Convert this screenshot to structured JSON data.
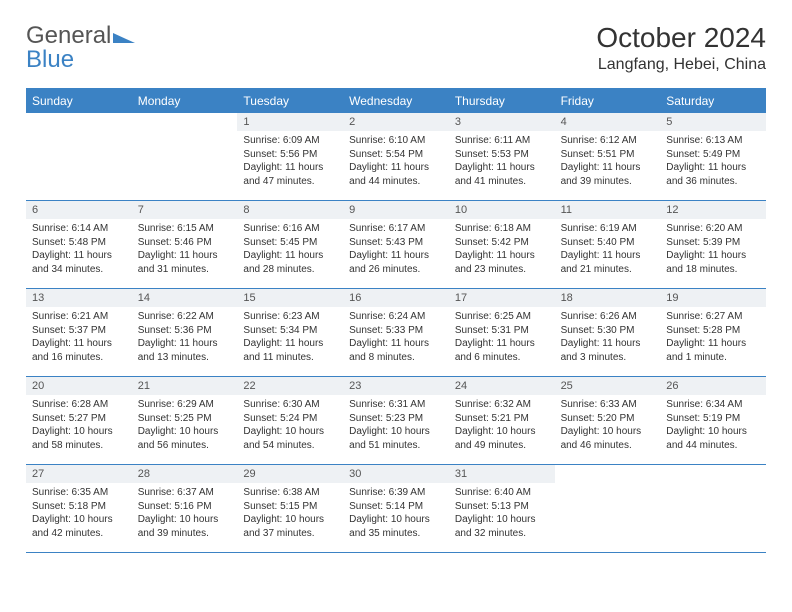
{
  "logo": {
    "part1": "General",
    "part2": "Blue"
  },
  "title": "October 2024",
  "location": "Langfang, Hebei, China",
  "colors": {
    "header_bg": "#3b82c4",
    "header_text": "#ffffff",
    "date_bar_bg": "#eef1f4",
    "border": "#3b82c4",
    "body_text": "#333333",
    "page_bg": "#ffffff"
  },
  "day_headers": [
    "Sunday",
    "Monday",
    "Tuesday",
    "Wednesday",
    "Thursday",
    "Friday",
    "Saturday"
  ],
  "weeks": [
    [
      {
        "date": "",
        "sunrise": "",
        "sunset": "",
        "daylight": ""
      },
      {
        "date": "",
        "sunrise": "",
        "sunset": "",
        "daylight": ""
      },
      {
        "date": "1",
        "sunrise": "Sunrise: 6:09 AM",
        "sunset": "Sunset: 5:56 PM",
        "daylight": "Daylight: 11 hours and 47 minutes."
      },
      {
        "date": "2",
        "sunrise": "Sunrise: 6:10 AM",
        "sunset": "Sunset: 5:54 PM",
        "daylight": "Daylight: 11 hours and 44 minutes."
      },
      {
        "date": "3",
        "sunrise": "Sunrise: 6:11 AM",
        "sunset": "Sunset: 5:53 PM",
        "daylight": "Daylight: 11 hours and 41 minutes."
      },
      {
        "date": "4",
        "sunrise": "Sunrise: 6:12 AM",
        "sunset": "Sunset: 5:51 PM",
        "daylight": "Daylight: 11 hours and 39 minutes."
      },
      {
        "date": "5",
        "sunrise": "Sunrise: 6:13 AM",
        "sunset": "Sunset: 5:49 PM",
        "daylight": "Daylight: 11 hours and 36 minutes."
      }
    ],
    [
      {
        "date": "6",
        "sunrise": "Sunrise: 6:14 AM",
        "sunset": "Sunset: 5:48 PM",
        "daylight": "Daylight: 11 hours and 34 minutes."
      },
      {
        "date": "7",
        "sunrise": "Sunrise: 6:15 AM",
        "sunset": "Sunset: 5:46 PM",
        "daylight": "Daylight: 11 hours and 31 minutes."
      },
      {
        "date": "8",
        "sunrise": "Sunrise: 6:16 AM",
        "sunset": "Sunset: 5:45 PM",
        "daylight": "Daylight: 11 hours and 28 minutes."
      },
      {
        "date": "9",
        "sunrise": "Sunrise: 6:17 AM",
        "sunset": "Sunset: 5:43 PM",
        "daylight": "Daylight: 11 hours and 26 minutes."
      },
      {
        "date": "10",
        "sunrise": "Sunrise: 6:18 AM",
        "sunset": "Sunset: 5:42 PM",
        "daylight": "Daylight: 11 hours and 23 minutes."
      },
      {
        "date": "11",
        "sunrise": "Sunrise: 6:19 AM",
        "sunset": "Sunset: 5:40 PM",
        "daylight": "Daylight: 11 hours and 21 minutes."
      },
      {
        "date": "12",
        "sunrise": "Sunrise: 6:20 AM",
        "sunset": "Sunset: 5:39 PM",
        "daylight": "Daylight: 11 hours and 18 minutes."
      }
    ],
    [
      {
        "date": "13",
        "sunrise": "Sunrise: 6:21 AM",
        "sunset": "Sunset: 5:37 PM",
        "daylight": "Daylight: 11 hours and 16 minutes."
      },
      {
        "date": "14",
        "sunrise": "Sunrise: 6:22 AM",
        "sunset": "Sunset: 5:36 PM",
        "daylight": "Daylight: 11 hours and 13 minutes."
      },
      {
        "date": "15",
        "sunrise": "Sunrise: 6:23 AM",
        "sunset": "Sunset: 5:34 PM",
        "daylight": "Daylight: 11 hours and 11 minutes."
      },
      {
        "date": "16",
        "sunrise": "Sunrise: 6:24 AM",
        "sunset": "Sunset: 5:33 PM",
        "daylight": "Daylight: 11 hours and 8 minutes."
      },
      {
        "date": "17",
        "sunrise": "Sunrise: 6:25 AM",
        "sunset": "Sunset: 5:31 PM",
        "daylight": "Daylight: 11 hours and 6 minutes."
      },
      {
        "date": "18",
        "sunrise": "Sunrise: 6:26 AM",
        "sunset": "Sunset: 5:30 PM",
        "daylight": "Daylight: 11 hours and 3 minutes."
      },
      {
        "date": "19",
        "sunrise": "Sunrise: 6:27 AM",
        "sunset": "Sunset: 5:28 PM",
        "daylight": "Daylight: 11 hours and 1 minute."
      }
    ],
    [
      {
        "date": "20",
        "sunrise": "Sunrise: 6:28 AM",
        "sunset": "Sunset: 5:27 PM",
        "daylight": "Daylight: 10 hours and 58 minutes."
      },
      {
        "date": "21",
        "sunrise": "Sunrise: 6:29 AM",
        "sunset": "Sunset: 5:25 PM",
        "daylight": "Daylight: 10 hours and 56 minutes."
      },
      {
        "date": "22",
        "sunrise": "Sunrise: 6:30 AM",
        "sunset": "Sunset: 5:24 PM",
        "daylight": "Daylight: 10 hours and 54 minutes."
      },
      {
        "date": "23",
        "sunrise": "Sunrise: 6:31 AM",
        "sunset": "Sunset: 5:23 PM",
        "daylight": "Daylight: 10 hours and 51 minutes."
      },
      {
        "date": "24",
        "sunrise": "Sunrise: 6:32 AM",
        "sunset": "Sunset: 5:21 PM",
        "daylight": "Daylight: 10 hours and 49 minutes."
      },
      {
        "date": "25",
        "sunrise": "Sunrise: 6:33 AM",
        "sunset": "Sunset: 5:20 PM",
        "daylight": "Daylight: 10 hours and 46 minutes."
      },
      {
        "date": "26",
        "sunrise": "Sunrise: 6:34 AM",
        "sunset": "Sunset: 5:19 PM",
        "daylight": "Daylight: 10 hours and 44 minutes."
      }
    ],
    [
      {
        "date": "27",
        "sunrise": "Sunrise: 6:35 AM",
        "sunset": "Sunset: 5:18 PM",
        "daylight": "Daylight: 10 hours and 42 minutes."
      },
      {
        "date": "28",
        "sunrise": "Sunrise: 6:37 AM",
        "sunset": "Sunset: 5:16 PM",
        "daylight": "Daylight: 10 hours and 39 minutes."
      },
      {
        "date": "29",
        "sunrise": "Sunrise: 6:38 AM",
        "sunset": "Sunset: 5:15 PM",
        "daylight": "Daylight: 10 hours and 37 minutes."
      },
      {
        "date": "30",
        "sunrise": "Sunrise: 6:39 AM",
        "sunset": "Sunset: 5:14 PM",
        "daylight": "Daylight: 10 hours and 35 minutes."
      },
      {
        "date": "31",
        "sunrise": "Sunrise: 6:40 AM",
        "sunset": "Sunset: 5:13 PM",
        "daylight": "Daylight: 10 hours and 32 minutes."
      },
      {
        "date": "",
        "sunrise": "",
        "sunset": "",
        "daylight": ""
      },
      {
        "date": "",
        "sunrise": "",
        "sunset": "",
        "daylight": ""
      }
    ]
  ]
}
